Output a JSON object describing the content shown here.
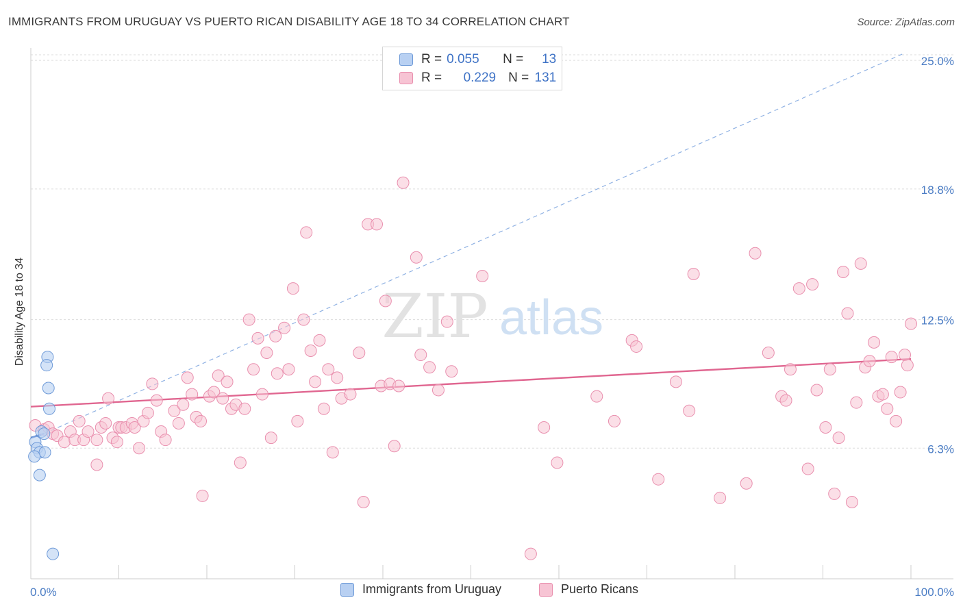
{
  "title": "IMMIGRANTS FROM URUGUAY VS PUERTO RICAN DISABILITY AGE 18 TO 34 CORRELATION CHART",
  "source": "Source: ZipAtlas.com",
  "watermark": {
    "zip": "ZIP",
    "atlas": "atlas"
  },
  "colors": {
    "uruguay_fill": "#b8d0f2",
    "uruguay_stroke": "#6e9ad8",
    "uruguay_line": "#3b6cc7",
    "pr_fill": "#f7c4d4",
    "pr_stroke": "#e98fae",
    "pr_line": "#e06690",
    "axis_text": "#4a7cc4",
    "grid": "#dddddd"
  },
  "legend": {
    "rows": [
      {
        "r_label": "R =",
        "r_value": "0.055",
        "n_label": "N =",
        "n_value": "13"
      },
      {
        "r_label": "R =",
        "r_value": "0.229",
        "n_label": "N =",
        "n_value": "131"
      }
    ]
  },
  "bottom_legend": [
    "Immigrants from Uruguay",
    "Puerto Ricans"
  ],
  "chart_data": {
    "type": "scatter",
    "title": "IMMIGRANTS FROM URUGUAY VS PUERTO RICAN DISABILITY AGE 18 TO 34 CORRELATION CHART",
    "xlabel": "",
    "ylabel": "Disability Age 18 to 34",
    "xlim": [
      0,
      100
    ],
    "ylim": [
      0,
      25.6
    ],
    "x_tick_labels": [
      "0.0%",
      "100.0%"
    ],
    "y_ticks": [
      6.3,
      12.5,
      18.8,
      25.0
    ],
    "y_tick_labels": [
      "6.3%",
      "12.5%",
      "18.8%",
      "25.0%"
    ],
    "grid": true,
    "legend_position": "top-center",
    "series": [
      {
        "name": "Immigrants from Uruguay",
        "r": 0.055,
        "n": 13,
        "trend_solid": [
          [
            0,
            6.8
          ],
          [
            1.5,
            7.0
          ]
        ],
        "trend_dashed": [
          [
            1.5,
            7.0
          ],
          [
            99,
            25.3
          ]
        ],
        "points": [
          [
            1.9,
            10.7
          ],
          [
            1.8,
            10.3
          ],
          [
            2.0,
            9.2
          ],
          [
            2.1,
            8.2
          ],
          [
            1.2,
            7.1
          ],
          [
            1.5,
            7.0
          ],
          [
            0.5,
            6.6
          ],
          [
            0.7,
            6.3
          ],
          [
            1.0,
            6.1
          ],
          [
            1.6,
            6.1
          ],
          [
            0.4,
            5.9
          ],
          [
            1.0,
            5.0
          ],
          [
            2.5,
            1.2
          ]
        ]
      },
      {
        "name": "Puerto Ricans",
        "r": 0.229,
        "n": 131,
        "trend": [
          [
            0,
            8.3
          ],
          [
            100,
            10.6
          ]
        ],
        "points": [
          [
            0.5,
            7.4
          ],
          [
            1.5,
            7.2
          ],
          [
            2.0,
            7.3
          ],
          [
            2.5,
            7.0
          ],
          [
            3.0,
            6.9
          ],
          [
            3.8,
            6.6
          ],
          [
            4.5,
            7.1
          ],
          [
            5.0,
            6.7
          ],
          [
            5.5,
            7.6
          ],
          [
            6.0,
            6.7
          ],
          [
            6.5,
            7.1
          ],
          [
            7.5,
            6.7
          ],
          [
            7.5,
            5.5
          ],
          [
            8.0,
            7.3
          ],
          [
            8.5,
            7.5
          ],
          [
            8.8,
            8.7
          ],
          [
            9.3,
            6.8
          ],
          [
            9.8,
            6.6
          ],
          [
            10.0,
            7.3
          ],
          [
            10.3,
            7.3
          ],
          [
            10.8,
            7.3
          ],
          [
            11.5,
            7.5
          ],
          [
            11.8,
            7.3
          ],
          [
            12.8,
            7.6
          ],
          [
            12.3,
            6.3
          ],
          [
            13.3,
            8.0
          ],
          [
            13.8,
            9.4
          ],
          [
            14.3,
            8.6
          ],
          [
            14.8,
            7.1
          ],
          [
            15.3,
            6.7
          ],
          [
            16.3,
            8.1
          ],
          [
            16.8,
            7.5
          ],
          [
            17.3,
            8.4
          ],
          [
            17.8,
            9.7
          ],
          [
            18.3,
            8.9
          ],
          [
            18.8,
            7.8
          ],
          [
            19.3,
            7.6
          ],
          [
            19.5,
            4.0
          ],
          [
            20.3,
            8.8
          ],
          [
            20.8,
            9.0
          ],
          [
            21.3,
            9.8
          ],
          [
            21.8,
            8.7
          ],
          [
            22.3,
            9.5
          ],
          [
            22.8,
            8.2
          ],
          [
            23.3,
            8.4
          ],
          [
            23.8,
            5.6
          ],
          [
            24.3,
            8.2
          ],
          [
            24.8,
            12.5
          ],
          [
            25.3,
            10.1
          ],
          [
            25.8,
            11.6
          ],
          [
            26.3,
            8.9
          ],
          [
            26.8,
            10.9
          ],
          [
            27.3,
            6.8
          ],
          [
            27.8,
            11.7
          ],
          [
            28.0,
            9.9
          ],
          [
            28.8,
            12.1
          ],
          [
            29.3,
            10.1
          ],
          [
            29.8,
            14.0
          ],
          [
            30.3,
            7.6
          ],
          [
            31.0,
            12.5
          ],
          [
            31.3,
            16.7
          ],
          [
            31.8,
            11.0
          ],
          [
            32.3,
            9.5
          ],
          [
            32.8,
            11.5
          ],
          [
            33.3,
            8.2
          ],
          [
            33.8,
            10.1
          ],
          [
            34.3,
            6.1
          ],
          [
            34.8,
            9.7
          ],
          [
            35.3,
            8.7
          ],
          [
            36.3,
            8.9
          ],
          [
            37.3,
            10.9
          ],
          [
            37.8,
            3.7
          ],
          [
            38.3,
            17.1
          ],
          [
            39.3,
            17.1
          ],
          [
            39.8,
            9.3
          ],
          [
            40.3,
            13.4
          ],
          [
            40.8,
            9.4
          ],
          [
            41.3,
            6.4
          ],
          [
            41.8,
            9.3
          ],
          [
            42.3,
            19.1
          ],
          [
            43.8,
            15.5
          ],
          [
            44.3,
            10.8
          ],
          [
            45.3,
            10.2
          ],
          [
            46.3,
            9.1
          ],
          [
            47.3,
            12.4
          ],
          [
            47.8,
            10.0
          ],
          [
            51.3,
            14.6
          ],
          [
            58.3,
            7.3
          ],
          [
            59.8,
            5.6
          ],
          [
            64.3,
            8.8
          ],
          [
            66.3,
            7.6
          ],
          [
            68.3,
            11.5
          ],
          [
            68.8,
            11.2
          ],
          [
            71.3,
            4.8
          ],
          [
            73.3,
            9.5
          ],
          [
            74.8,
            8.1
          ],
          [
            75.3,
            14.7
          ],
          [
            78.3,
            3.9
          ],
          [
            81.3,
            4.6
          ],
          [
            82.3,
            15.7
          ],
          [
            83.8,
            10.9
          ],
          [
            85.3,
            8.8
          ],
          [
            85.8,
            8.6
          ],
          [
            86.3,
            10.1
          ],
          [
            87.3,
            14.0
          ],
          [
            88.8,
            14.2
          ],
          [
            88.3,
            5.3
          ],
          [
            89.3,
            9.1
          ],
          [
            90.3,
            7.3
          ],
          [
            90.8,
            10.1
          ],
          [
            91.3,
            4.1
          ],
          [
            91.8,
            6.8
          ],
          [
            92.3,
            14.8
          ],
          [
            92.8,
            12.8
          ],
          [
            93.3,
            3.7
          ],
          [
            93.8,
            8.5
          ],
          [
            94.3,
            15.2
          ],
          [
            94.8,
            10.2
          ],
          [
            95.3,
            10.5
          ],
          [
            95.8,
            11.4
          ],
          [
            96.3,
            8.8
          ],
          [
            96.8,
            8.9
          ],
          [
            97.3,
            8.2
          ],
          [
            97.8,
            10.7
          ],
          [
            98.3,
            7.6
          ],
          [
            98.8,
            9.0
          ],
          [
            99.3,
            10.8
          ],
          [
            99.6,
            10.3
          ],
          [
            100.0,
            12.3
          ],
          [
            56.8,
            1.2
          ]
        ]
      }
    ]
  }
}
